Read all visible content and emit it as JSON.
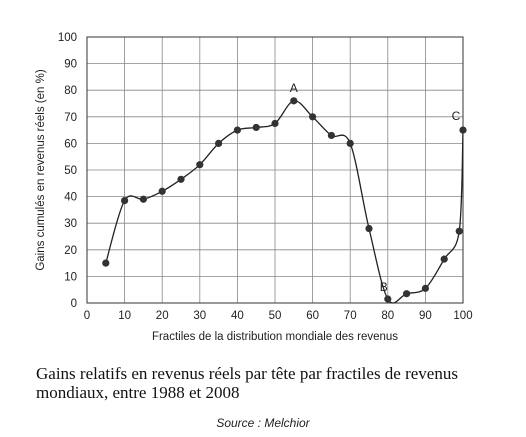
{
  "chart_data": {
    "type": "line",
    "ylabel": "Gains cumulés en revenus réels (en %)",
    "xlabel": "Fractiles de la distribution mondiale des revenus",
    "xlim": [
      0,
      100
    ],
    "ylim": [
      0,
      100
    ],
    "xticks": [
      0,
      10,
      20,
      30,
      40,
      50,
      60,
      70,
      80,
      90,
      100
    ],
    "yticks": [
      0,
      10,
      20,
      30,
      40,
      50,
      60,
      70,
      80,
      90,
      100
    ],
    "grid": true,
    "x": [
      5,
      10,
      15,
      20,
      25,
      30,
      35,
      40,
      45,
      50,
      55,
      60,
      65,
      70,
      75,
      80,
      85,
      90,
      95,
      99,
      100
    ],
    "y": [
      15,
      38.5,
      39,
      42,
      46.5,
      52,
      60,
      65,
      66,
      67.5,
      76,
      70,
      63,
      60,
      28,
      1.5,
      3.5,
      5.5,
      16.5,
      27,
      65
    ],
    "annotations": [
      {
        "text": "A",
        "x": 55,
        "y": 76
      },
      {
        "text": "B",
        "x": 80,
        "y": 1.5
      },
      {
        "text": "C",
        "x": 100,
        "y": 65
      }
    ]
  },
  "caption": "Gains relatifs en revenus réels par tête par fractiles  de revenus mondiaux, entre 1988 et 2008",
  "source": "Source : Melchior"
}
